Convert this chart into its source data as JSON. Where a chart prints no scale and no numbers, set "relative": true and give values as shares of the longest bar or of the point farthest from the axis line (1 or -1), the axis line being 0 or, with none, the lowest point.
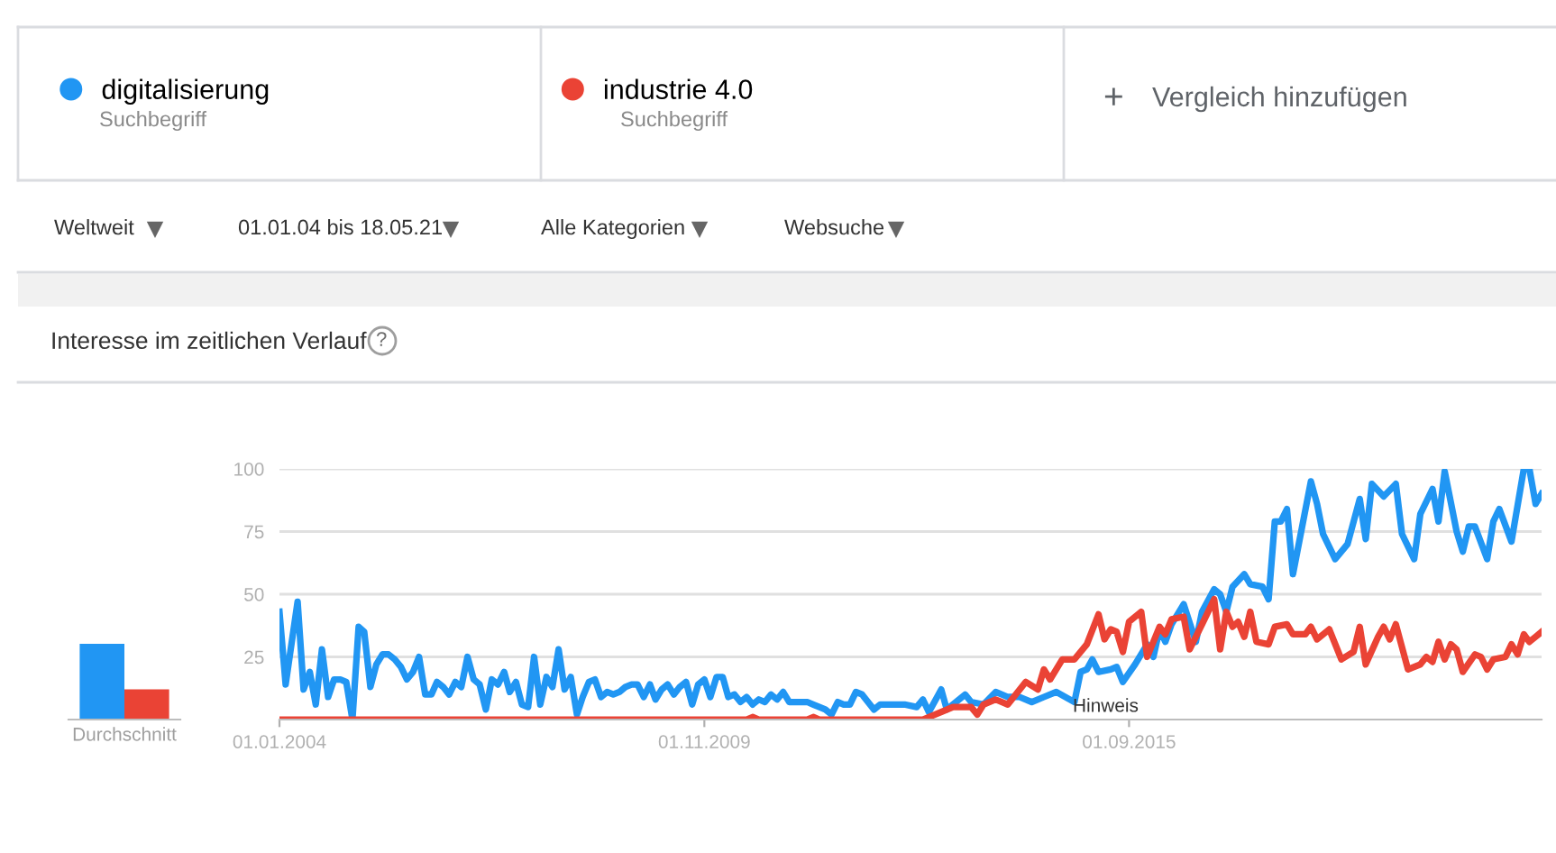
{
  "chart_data": [
    {
      "type": "bar",
      "relative": true,
      "categories": [
        "Durchschnitt"
      ],
      "tick_labels": "x",
      "series": [
        {
          "color": "#2196f3",
          "values": [
            1
          ]
        },
        {
          "color": "#ea4335",
          "values": [
            0.4
          ]
        }
      ]
    },
    {
      "type": "line",
      "title": "Interesse im zeitlichen Verlauf",
      "legend": "top left",
      "grid": "y",
      "marker": "none",
      "line_style": "solid",
      "xlim": [
        "2004-01",
        "2021-05"
      ],
      "ylim": [
        0,
        100
      ],
      "yticks": [
        25,
        50,
        75,
        100
      ],
      "xticks": [
        {
          "value": "2004-01-01",
          "label": "01.01.2004"
        },
        {
          "value": "2009-11-01",
          "label": "01.11.2009"
        },
        {
          "value": "2015-09-01",
          "label": "01.09.2015"
        }
      ],
      "annotations": [
        "Suchbegriff",
        "Suchbegriff",
        "+",
        "Vergleich hinzufügen",
        "Weltweit",
        "01.01.04 bis 18.05.21",
        "Alle Kategorien",
        "Websuche",
        "Hinweis",
        "?"
      ],
      "series": [
        {
          "name": "digitalisierung",
          "color": "#2196f3",
          "x": [
            "2004-01",
            "2004-02",
            "2004-03",
            "2004-04",
            "2004-05",
            "2004-06",
            "2004-07",
            "2004-08",
            "2004-09",
            "2004-10",
            "2004-11",
            "2004-12",
            "2005-01",
            "2005-02",
            "2005-03",
            "2005-04",
            "2005-05",
            "2005-06",
            "2005-07",
            "2005-08",
            "2005-09",
            "2005-10",
            "2005-11",
            "2005-12",
            "2006-01",
            "2006-02",
            "2006-03",
            "2006-04",
            "2006-05",
            "2006-06",
            "2006-07",
            "2006-08",
            "2006-09",
            "2006-10",
            "2006-11",
            "2006-12",
            "2007-01",
            "2007-02",
            "2007-03",
            "2007-04",
            "2007-05",
            "2007-06",
            "2007-07",
            "2007-08",
            "2007-09",
            "2007-10",
            "2007-11",
            "2007-12",
            "2008-01",
            "2008-02",
            "2008-03",
            "2008-04",
            "2008-05",
            "2008-06",
            "2008-07",
            "2008-08",
            "2008-09",
            "2008-10",
            "2008-11",
            "2008-12",
            "2009-01",
            "2009-02",
            "2009-03",
            "2009-04",
            "2009-05",
            "2009-06",
            "2009-07",
            "2009-08",
            "2009-09",
            "2009-10",
            "2009-11",
            "2009-12",
            "2010-01",
            "2010-02",
            "2010-03",
            "2010-04",
            "2010-05",
            "2010-06",
            "2010-07",
            "2010-08",
            "2010-09",
            "2010-10",
            "2010-11",
            "2010-12",
            "2011-01",
            "2011-02",
            "2011-03",
            "2011-04",
            "2011-05",
            "2011-06",
            "2011-07",
            "2011-08",
            "2011-09",
            "2011-10",
            "2011-11",
            "2011-12",
            "2012-01",
            "2012-03",
            "2012-04",
            "2012-06",
            "2012-08",
            "2012-10",
            "2012-11",
            "2012-12",
            "2013-02",
            "2013-03",
            "2013-06",
            "2013-07",
            "2013-09",
            "2013-11",
            "2014-01",
            "2014-03",
            "2014-05",
            "2014-07",
            "2014-09",
            "2014-12",
            "2015-01",
            "2015-02",
            "2015-03",
            "2015-04",
            "2015-06",
            "2015-07",
            "2015-08",
            "2015-10",
            "2015-12",
            "2016-01",
            "2016-02",
            "2016-03",
            "2016-04",
            "2016-06",
            "2016-08",
            "2016-09",
            "2016-11",
            "2016-12",
            "2017-01",
            "2017-02",
            "2017-04",
            "2017-05",
            "2017-07",
            "2017-08",
            "2017-09",
            "2017-10",
            "2017-11",
            "2017-12",
            "2018-03",
            "2018-04",
            "2018-05",
            "2018-07",
            "2018-09",
            "2018-11",
            "2018-12",
            "2019-01",
            "2019-03",
            "2019-05",
            "2019-06",
            "2019-08",
            "2019-09",
            "2019-11",
            "2019-12",
            "2020-01",
            "2020-03",
            "2020-04",
            "2020-05",
            "2020-06",
            "2020-08",
            "2020-09",
            "2020-10",
            "2020-12",
            "2021-02",
            "2021-03",
            "2021-04",
            "2021-05"
          ],
          "values": [
            43,
            14,
            30,
            47,
            12,
            19,
            6,
            28,
            9,
            16,
            16,
            15,
            0,
            37,
            35,
            13,
            22,
            26,
            26,
            24,
            21,
            16,
            19,
            25,
            10,
            10,
            15,
            13,
            10,
            15,
            13,
            25,
            16,
            14,
            4,
            16,
            14,
            19,
            11,
            15,
            6,
            5,
            25,
            6,
            17,
            13,
            28,
            12,
            17,
            2,
            9,
            15,
            16,
            9,
            11,
            10,
            11,
            13,
            14,
            14,
            9,
            14,
            8,
            12,
            14,
            10,
            13,
            15,
            6,
            14,
            16,
            9,
            17,
            17,
            9,
            10,
            7,
            9,
            6,
            8,
            7,
            10,
            8,
            11,
            7,
            7,
            7,
            7,
            6,
            5,
            4,
            2,
            7,
            6,
            6,
            11,
            10,
            4,
            6,
            6,
            6,
            5,
            8,
            3,
            12,
            4,
            10,
            7,
            6,
            11,
            9,
            9,
            7,
            9,
            11,
            7,
            19,
            20,
            24,
            19,
            20,
            21,
            15,
            22,
            30,
            25,
            36,
            31,
            38,
            46,
            31,
            43,
            52,
            50,
            43,
            53,
            58,
            54,
            53,
            48,
            79,
            79,
            84,
            58,
            95,
            86,
            74,
            64,
            70,
            88,
            72,
            94,
            89,
            94,
            74,
            64,
            82,
            92,
            79,
            99,
            75,
            67,
            77,
            77,
            64,
            79,
            84,
            71,
            100,
            100,
            86,
            90
          ]
        },
        {
          "name": "industrie 4.0",
          "color": "#ea4335",
          "x": [
            "2004-01",
            "2010-06",
            "2010-07",
            "2010-08",
            "2011-04",
            "2011-05",
            "2011-06",
            "2012-02",
            "2012-11",
            "2012-12",
            "2013-02",
            "2013-04",
            "2013-07",
            "2013-08",
            "2013-09",
            "2013-11",
            "2014-01",
            "2014-04",
            "2014-06",
            "2014-07",
            "2014-08",
            "2014-10",
            "2014-12",
            "2015-02",
            "2015-04",
            "2015-05",
            "2015-06",
            "2015-07",
            "2015-08",
            "2015-09",
            "2015-11",
            "2015-12",
            "2016-02",
            "2016-03",
            "2016-04",
            "2016-06",
            "2016-07",
            "2016-09",
            "2016-11",
            "2016-12",
            "2017-01",
            "2017-02",
            "2017-03",
            "2017-04",
            "2017-05",
            "2017-06",
            "2017-08",
            "2017-09",
            "2017-11",
            "2017-12",
            "2018-02",
            "2018-03",
            "2018-04",
            "2018-06",
            "2018-08",
            "2018-10",
            "2018-11",
            "2018-12",
            "2019-02",
            "2019-03",
            "2019-04",
            "2019-05",
            "2019-07",
            "2019-09",
            "2019-10",
            "2019-11",
            "2019-12",
            "2020-01",
            "2020-02",
            "2020-03",
            "2020-04",
            "2020-06",
            "2020-07",
            "2020-08",
            "2020-09",
            "2020-11",
            "2020-12",
            "2021-01",
            "2021-02",
            "2021-03",
            "2021-04",
            "2021-05"
          ],
          "values": [
            0,
            0,
            1,
            0,
            0,
            1,
            0,
            0,
            0,
            1,
            3,
            5,
            5,
            2,
            6,
            8,
            6,
            15,
            12,
            20,
            16,
            24,
            24,
            30,
            42,
            32,
            36,
            35,
            27,
            39,
            43,
            25,
            37,
            34,
            40,
            41,
            28,
            38,
            48,
            28,
            43,
            37,
            39,
            33,
            43,
            31,
            30,
            37,
            38,
            34,
            34,
            37,
            32,
            36,
            24,
            27,
            37,
            22,
            33,
            37,
            32,
            38,
            20,
            22,
            25,
            23,
            31,
            24,
            30,
            28,
            19,
            26,
            25,
            20,
            24,
            25,
            30,
            26,
            34,
            31,
            33,
            35
          ]
        }
      ]
    }
  ]
}
